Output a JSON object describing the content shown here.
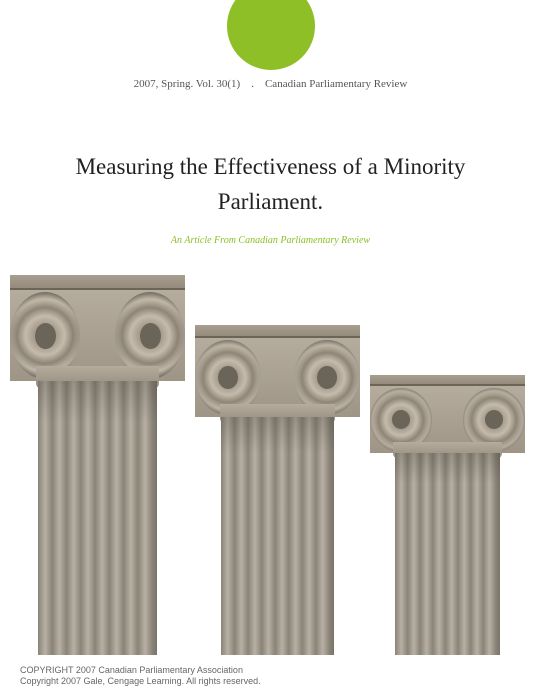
{
  "accent_color": "#8fbf26",
  "header": {
    "issue": "2007, Spring. Vol. 30(1)",
    "separator": ".",
    "publication": "Canadian Parliamentary Review"
  },
  "title": {
    "line1": "Measuring the Effectiveness of a Minority",
    "line2": "Parliament."
  },
  "subtitle": "An Article From Canadian Parliamentary Review",
  "subtitle_color": "#8fbf26",
  "columns": {
    "type": "decorative-illustration",
    "description": "three ionic columns descending in height",
    "stone_light": "#c4bbac",
    "stone_mid": "#a59c8d",
    "stone_dark": "#7a7368"
  },
  "copyright": {
    "line1": "COPYRIGHT 2007 Canadian Parliamentary Association",
    "line2": "Copyright 2007 Gale, Cengage Learning. All rights reserved."
  }
}
